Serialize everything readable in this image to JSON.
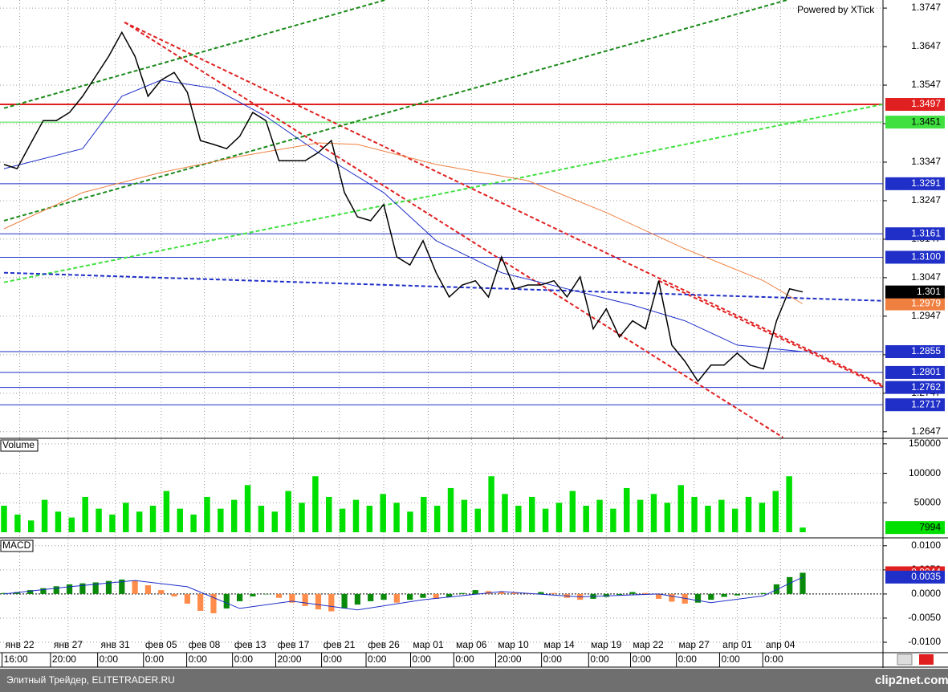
{
  "chart_data": [
    {
      "type": "line",
      "watermark": "Powered by XTick",
      "xlim": [
        0,
        61
      ],
      "ylim": [
        1.2632,
        1.3768
      ],
      "yticks": [
        1.2647,
        1.2747,
        1.2847,
        1.2947,
        1.3047,
        1.3147,
        1.3247,
        1.3347,
        1.3447,
        1.3547,
        1.3647,
        1.3747
      ],
      "series": [
        {
          "color": "#000000",
          "values": [
            1.3341,
            1.333,
            1.3393,
            1.3455,
            1.3455,
            1.3476,
            1.3518,
            1.357,
            1.3622,
            1.3684,
            1.3622,
            1.3518,
            1.356,
            1.358,
            1.3528,
            1.3403,
            1.3393,
            1.3382,
            1.3414,
            1.3476,
            1.3455,
            1.3351,
            1.3351,
            1.3351,
            1.3372,
            1.3403,
            1.3268,
            1.3205,
            1.3195,
            1.3237,
            1.3101,
            1.308,
            1.3143,
            1.306,
            1.2997,
            1.3028,
            1.3039,
            1.2997,
            1.3101,
            1.3018,
            1.3028,
            1.3028,
            1.3039,
            1.2997,
            1.3049,
            1.2914,
            1.2966,
            1.2893,
            1.2935,
            1.2914,
            1.3039,
            1.2872,
            1.283,
            1.2778,
            1.282,
            1.282,
            1.2851,
            1.282,
            1.281,
            1.2935,
            1.3018,
            1.301
          ]
        }
      ],
      "moving_averages": [
        {
          "color": "#1f2fc8",
          "x": [
            0,
            6,
            9,
            12,
            16,
            20,
            24,
            29,
            33,
            38,
            43,
            48,
            52,
            56,
            61
          ],
          "values": [
            1.333,
            1.3382,
            1.3518,
            1.356,
            1.3539,
            1.3466,
            1.3372,
            1.3268,
            1.3143,
            1.306,
            1.3018,
            1.2976,
            1.2935,
            1.2872,
            1.2855
          ]
        },
        {
          "color": "#f08040",
          "x": [
            0,
            6,
            12,
            18,
            24,
            27,
            33,
            40,
            46,
            52,
            58,
            61
          ],
          "values": [
            1.3174,
            1.3268,
            1.332,
            1.3362,
            1.3397,
            1.3393,
            1.3341,
            1.3299,
            1.3216,
            1.3122,
            1.3039,
            1.2979
          ]
        }
      ],
      "trend_lines": [
        {
          "color": "#e02020",
          "x": [
            9.2,
            67.1
          ],
          "values": [
            1.371,
            1.2768
          ]
        },
        {
          "color": "#e02020",
          "x": [
            9.2,
            59.5
          ],
          "values": [
            1.371,
            1.2632
          ]
        },
        {
          "color": "#e02020",
          "x": [
            50,
            67.1
          ],
          "values": [
            1.3039,
            1.2764
          ]
        },
        {
          "color": "#1a8a1a",
          "x": [
            0,
            29.1
          ],
          "values": [
            1.3487,
            1.3768
          ]
        },
        {
          "color": "#1a8a1a",
          "x": [
            0,
            59.8
          ],
          "values": [
            1.3195,
            1.3768
          ]
        },
        {
          "color": "#40e040",
          "x": [
            0,
            67.1
          ],
          "values": [
            1.3035,
            1.3497
          ]
        },
        {
          "color": "#1f2fc8",
          "x": [
            0,
            67.1
          ],
          "values": [
            1.306,
            1.2987
          ]
        }
      ],
      "levels": [
        {
          "value": 1.3497,
          "label": "1.3497",
          "color": "#e02020",
          "text_color": "#ffffff"
        },
        {
          "value": 1.3451,
          "label": "1.3451",
          "color": "#40e040",
          "text_color": "#000000"
        },
        {
          "value": 1.3291,
          "label": "1.3291",
          "color": "#1f2fc8",
          "text_color": "#ffffff"
        },
        {
          "value": 1.3161,
          "label": "1.3161",
          "color": "#1f2fc8",
          "text_color": "#ffffff"
        },
        {
          "value": 1.31,
          "label": "1.3100",
          "color": "#1f2fc8",
          "text_color": "#ffffff"
        },
        {
          "value": 1.2855,
          "label": "1.2855",
          "color": "#1f2fc8",
          "text_color": "#ffffff"
        },
        {
          "value": 1.2801,
          "label": "1.2801",
          "color": "#1f2fc8",
          "text_color": "#ffffff"
        },
        {
          "value": 1.2762,
          "label": "1.2762",
          "color": "#1f2fc8",
          "text_color": "#ffffff"
        },
        {
          "value": 1.2717,
          "label": "1.2717",
          "color": "#1f2fc8",
          "text_color": "#ffffff"
        }
      ]
    },
    {
      "type": "bar",
      "label": "Volume",
      "xlim": [
        0,
        59
      ],
      "ylim": [
        -6800,
        158000
      ],
      "yticks": [
        50000,
        100000,
        150000
      ],
      "color": "#00e000",
      "values": [
        45000,
        30000,
        20000,
        55000,
        35000,
        25000,
        60000,
        40000,
        30000,
        50000,
        35000,
        45000,
        70000,
        40000,
        30000,
        60000,
        40000,
        55000,
        80000,
        45000,
        35000,
        70000,
        50000,
        95000,
        60000,
        40000,
        55000,
        45000,
        65000,
        50000,
        35000,
        60000,
        45000,
        75000,
        55000,
        40000,
        95000,
        65000,
        45000,
        60000,
        40000,
        50000,
        70000,
        45000,
        55000,
        40000,
        75000,
        55000,
        65000,
        50000,
        80000,
        60000,
        45000,
        55000,
        40000,
        60000,
        50000,
        70000,
        95000,
        7994
      ]
    },
    {
      "type": "bar",
      "label": "MACD",
      "xlim": [
        0,
        61
      ],
      "ylim": [
        -0.012,
        0.0113
      ],
      "yticks": [
        {
          "value": -0.01,
          "label": "-0.0100"
        },
        {
          "value": -0.005,
          "label": "-0.0050"
        },
        {
          "value": 0,
          "label": "0.0000"
        },
        {
          "value": 0.005,
          "label": "0.0050"
        },
        {
          "value": 0.01,
          "label": "0.0100"
        }
      ],
      "up_color": "#0a8a0a",
      "down_color": "#ff8c4a",
      "values": [
        0.0002,
        0.0004,
        0.0008,
        0.0012,
        0.0016,
        0.002,
        0.0022,
        0.0024,
        0.0027,
        0.003,
        0.0028,
        0.0018,
        0.0008,
        -0.0005,
        -0.002,
        -0.0035,
        -0.004,
        -0.003,
        -0.0015,
        -0.0005,
        0.0,
        -0.0008,
        -0.0018,
        -0.0025,
        -0.0032,
        -0.0036,
        -0.003,
        -0.0022,
        -0.0015,
        -0.0012,
        -0.0018,
        -0.0012,
        -0.0008,
        -0.001,
        -0.0006,
        0.0002,
        0.0008,
        0.0006,
        0.0004,
        0.0003,
        0.0001,
        0.0004,
        0.0002,
        -0.0008,
        -0.0012,
        -0.001,
        -0.0006,
        -0.0002,
        0.0004,
        0.0002,
        -0.001,
        -0.0016,
        -0.002,
        -0.0018,
        -0.0012,
        -0.0006,
        -0.0003,
        0.0,
        0.0002,
        0.002,
        0.0035,
        0.0044
      ],
      "hist_box_color": "#e02020",
      "signal": {
        "color": "#1f2fc8",
        "x": [
          0,
          5,
          10,
          14,
          18,
          22,
          27,
          32,
          38,
          44,
          50,
          54,
          58,
          61
        ],
        "values": [
          0.0,
          0.0015,
          0.0028,
          0.0015,
          -0.003,
          -0.0015,
          -0.0033,
          -0.0012,
          0.0005,
          -0.0006,
          0.0,
          -0.0018,
          -0.0004,
          0.0035
        ]
      }
    }
  ],
  "date_axis": {
    "xlim": [
      0,
      61
    ],
    "labels": [
      {
        "x": 1.2,
        "date": "янв 22",
        "time": "16:00"
      },
      {
        "x": 4.9,
        "date": "янв 27",
        "time": "20:00"
      },
      {
        "x": 8.5,
        "date": "янв 31",
        "time": "0:00"
      },
      {
        "x": 12,
        "date": "фев 05",
        "time": "0:00"
      },
      {
        "x": 15.3,
        "date": "фев 08",
        "time": "0:00"
      },
      {
        "x": 18.8,
        "date": "фев 13",
        "time": "0:00"
      },
      {
        "x": 22.1,
        "date": "фев 17",
        "time": "20:00"
      },
      {
        "x": 25.6,
        "date": "фев 21",
        "time": "0:00"
      },
      {
        "x": 29,
        "date": "фев 26",
        "time": "0:00"
      },
      {
        "x": 32.4,
        "date": "мар 01",
        "time": "0:00"
      },
      {
        "x": 35.7,
        "date": "мар 06",
        "time": "0:00"
      },
      {
        "x": 38.9,
        "date": "мар 10",
        "time": "20:00"
      },
      {
        "x": 42.4,
        "date": "мар 14",
        "time": "0:00"
      },
      {
        "x": 46,
        "date": "мар 19",
        "time": "0:00"
      },
      {
        "x": 49.2,
        "date": "мар 22",
        "time": "0:00"
      },
      {
        "x": 52.7,
        "date": "мар 27",
        "time": "0:00"
      },
      {
        "x": 56,
        "date": "апр 01",
        "time": "0:00"
      },
      {
        "x": 59.3,
        "date": "апр 04",
        "time": "0:00"
      }
    ]
  },
  "footer": {
    "left": "Элитный Трейдер, ELITETRADER.RU",
    "right": "clip2net.com"
  }
}
